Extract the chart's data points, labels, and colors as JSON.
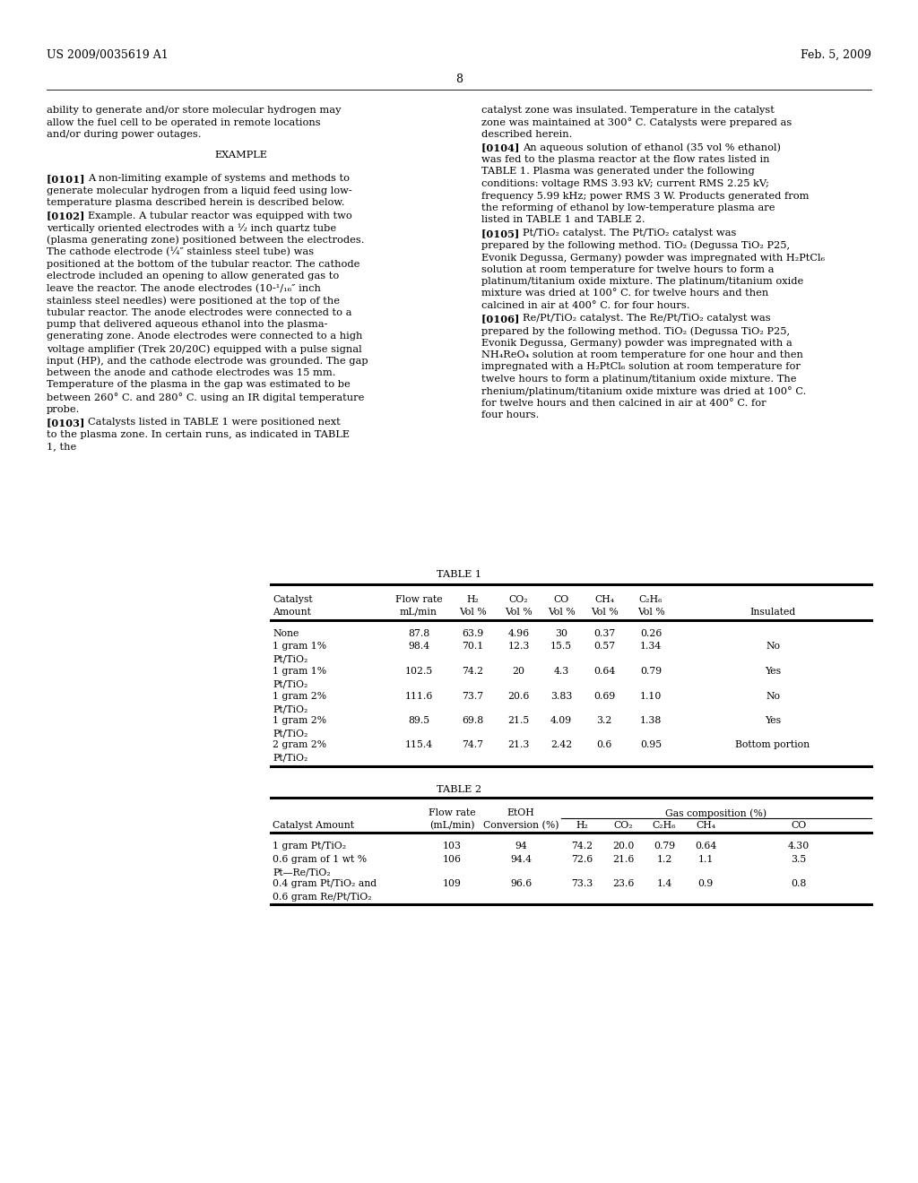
{
  "background_color": "#ffffff",
  "header_left": "US 2009/0035619 A1",
  "header_right": "Feb. 5, 2009",
  "page_number": "8",
  "font_family": "DejaVu Serif",
  "fs_header": 9.0,
  "fs_body": 8.2,
  "fs_table": 7.8,
  "left_paragraphs": [
    {
      "type": "text",
      "text": "ability to generate and/or store molecular hydrogen may allow the fuel cell to be operated in remote locations and/or during power outages."
    },
    {
      "type": "blank"
    },
    {
      "type": "center",
      "text": "EXAMPLE"
    },
    {
      "type": "blank"
    },
    {
      "type": "para",
      "num": "[0101]",
      "text": "A non-limiting example of systems and methods to generate molecular hydrogen from a liquid feed using low-temperature plasma described herein is described below."
    },
    {
      "type": "para",
      "num": "[0102]",
      "text": "Example. A tubular reactor was equipped with two vertically oriented electrodes with a ½ inch quartz tube (plasma generating zone) positioned between the electrodes. The cathode electrode (¼″ stainless steel tube) was positioned at the bottom of the tubular reactor. The cathode electrode included an opening to allow generated gas to leave the reactor. The anode electrodes (10-¹/₁₆″ inch stainless steel needles) were positioned at the top of the tubular reactor. The anode electrodes were connected to a pump that delivered aqueous ethanol into the plasma-generating zone. Anode electrodes were connected to a high voltage amplifier (Trek 20/20C) equipped with a pulse signal input (HP), and the cathode electrode was grounded. The gap between the anode and cathode electrodes was 15 mm. Temperature of the plasma in the gap was estimated to be between 260° C. and 280° C. using an IR digital temperature probe."
    },
    {
      "type": "para",
      "num": "[0103]",
      "text": "Catalysts listed in TABLE 1 were positioned next to the plasma zone. In certain runs, as indicated in TABLE 1, the"
    }
  ],
  "right_paragraphs": [
    {
      "type": "text",
      "text": "catalyst zone was insulated. Temperature in the catalyst zone was maintained at 300° C. Catalysts were prepared as described herein."
    },
    {
      "type": "para",
      "num": "[0104]",
      "text": "An aqueous solution of ethanol (35 vol % ethanol) was fed to the plasma reactor at the flow rates listed in TABLE 1. Plasma was generated under the following conditions: voltage RMS 3.93 kV; current RMS 2.25 kV; frequency 5.99 kHz; power RMS 3 W. Products generated from the reforming of ethanol by low-temperature plasma are listed in TABLE 1 and TABLE 2."
    },
    {
      "type": "para",
      "num": "[0105]",
      "text": "Pt/TiO₂ catalyst. The Pt/TiO₂ catalyst was prepared by the following method. TiO₂ (Degussa TiO₂ P25, Evonik Degussa, Germany) powder was impregnated with H₂PtCl₆ solution at room temperature for twelve hours to form a platinum/titanium oxide mixture. The platinum/titanium oxide mixture was dried at 100° C. for twelve hours and then calcined in air at 400° C. for four hours."
    },
    {
      "type": "para",
      "num": "[0106]",
      "text": "Re/Pt/TiO₂ catalyst. The Re/Pt/TiO₂ catalyst was prepared by the following method. TiO₂ (Degussa TiO₂ P25, Evonik Degussa, Germany) powder was impregnated with a NH₄ReO₄ solution at room temperature for one hour and then impregnated with a H₂PtCl₆ solution at room temperature for twelve hours to form a platinum/titanium oxide mixture. The rhenium/platinum/titanium oxide mixture was dried at 100° C. for twelve hours and then calcined in air at 400° C. for four hours."
    }
  ],
  "table1_title": "TABLE 1",
  "table1_col_headers_line1": [
    "Catalyst",
    "Flow rate",
    "H₂",
    "CO₂",
    "CO",
    "CH₄",
    "C₂H₆",
    ""
  ],
  "table1_col_headers_line2": [
    "Amount",
    "mL/min",
    "Vol %",
    "Vol %",
    "Vol %",
    "Vol %",
    "Vol %",
    "Insulated"
  ],
  "table1_rows": [
    [
      "None",
      "87.8",
      "63.9",
      "4.96",
      "30",
      "0.37",
      "0.26",
      ""
    ],
    [
      "1 gram 1%",
      "98.4",
      "70.1",
      "12.3",
      "15.5",
      "0.57",
      "1.34",
      "No"
    ],
    [
      "Pt/TiO₂",
      "",
      "",
      "",
      "",
      "",
      "",
      ""
    ],
    [
      "1 gram 1%",
      "102.5",
      "74.2",
      "20",
      "4.3",
      "0.64",
      "0.79",
      "Yes"
    ],
    [
      "Pt/TiO₂",
      "",
      "",
      "",
      "",
      "",
      "",
      ""
    ],
    [
      "1 gram 2%",
      "111.6",
      "73.7",
      "20.6",
      "3.83",
      "0.69",
      "1.10",
      "No"
    ],
    [
      "Pt/TiO₂",
      "",
      "",
      "",
      "",
      "",
      "",
      ""
    ],
    [
      "1 gram 2%",
      "89.5",
      "69.8",
      "21.5",
      "4.09",
      "3.2",
      "1.38",
      "Yes"
    ],
    [
      "Pt/TiO₂",
      "",
      "",
      "",
      "",
      "",
      "",
      ""
    ],
    [
      "2 gram 2%",
      "115.4",
      "74.7",
      "21.3",
      "2.42",
      "0.6",
      "0.95",
      "Bottom portion"
    ],
    [
      "Pt/TiO₂",
      "",
      "",
      "",
      "",
      "",
      "",
      ""
    ]
  ],
  "table2_title": "TABLE 2",
  "table2_rows": [
    [
      "1 gram Pt/TiO₂",
      "103",
      "94",
      "74.2",
      "20.0",
      "0.79",
      "0.64",
      "4.30"
    ],
    [
      "0.6 gram of 1 wt %",
      "106",
      "94.4",
      "72.6",
      "21.6",
      "1.2",
      "1.1",
      "3.5"
    ],
    [
      "Pt—Re/TiO₂",
      "",
      "",
      "",
      "",
      "",
      "",
      ""
    ],
    [
      "0.4 gram Pt/TiO₂ and",
      "109",
      "96.6",
      "73.3",
      "23.6",
      "1.4",
      "0.9",
      "0.8"
    ],
    [
      "0.6 gram Re/Pt/TiO₂",
      "",
      "",
      "",
      "",
      "",
      "",
      ""
    ]
  ]
}
